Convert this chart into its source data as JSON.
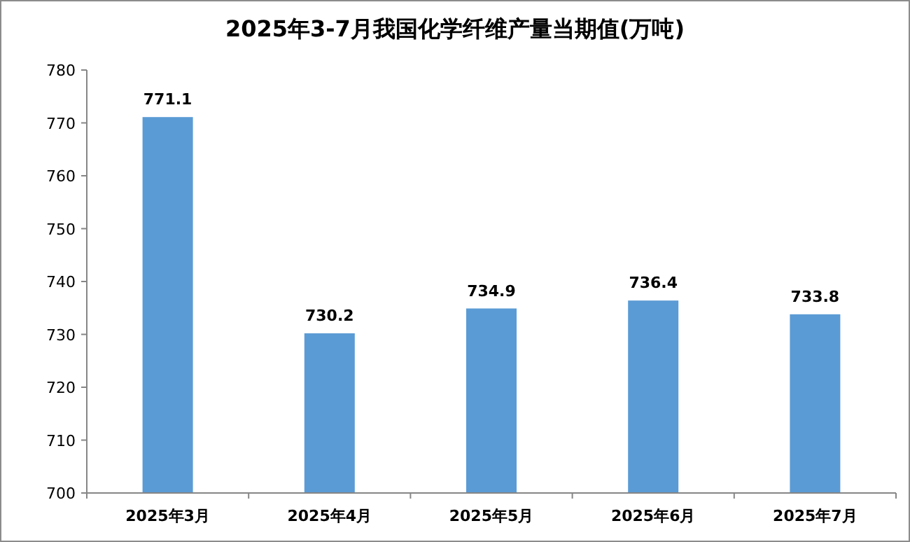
{
  "chart_data": {
    "type": "bar",
    "title": "2025年3-7月我国化学纤维产量当期值(万吨)",
    "categories": [
      "2025年3月",
      "2025年4月",
      "2025年5月",
      "2025年6月",
      "2025年7月"
    ],
    "values": [
      771.1,
      730.2,
      734.9,
      736.4,
      733.8
    ],
    "color": "#5b9bd5",
    "ylim": [
      700,
      780
    ],
    "yticks": [
      700,
      710,
      720,
      730,
      740,
      750,
      760,
      770,
      780
    ],
    "grid": false,
    "data_labels": true
  }
}
